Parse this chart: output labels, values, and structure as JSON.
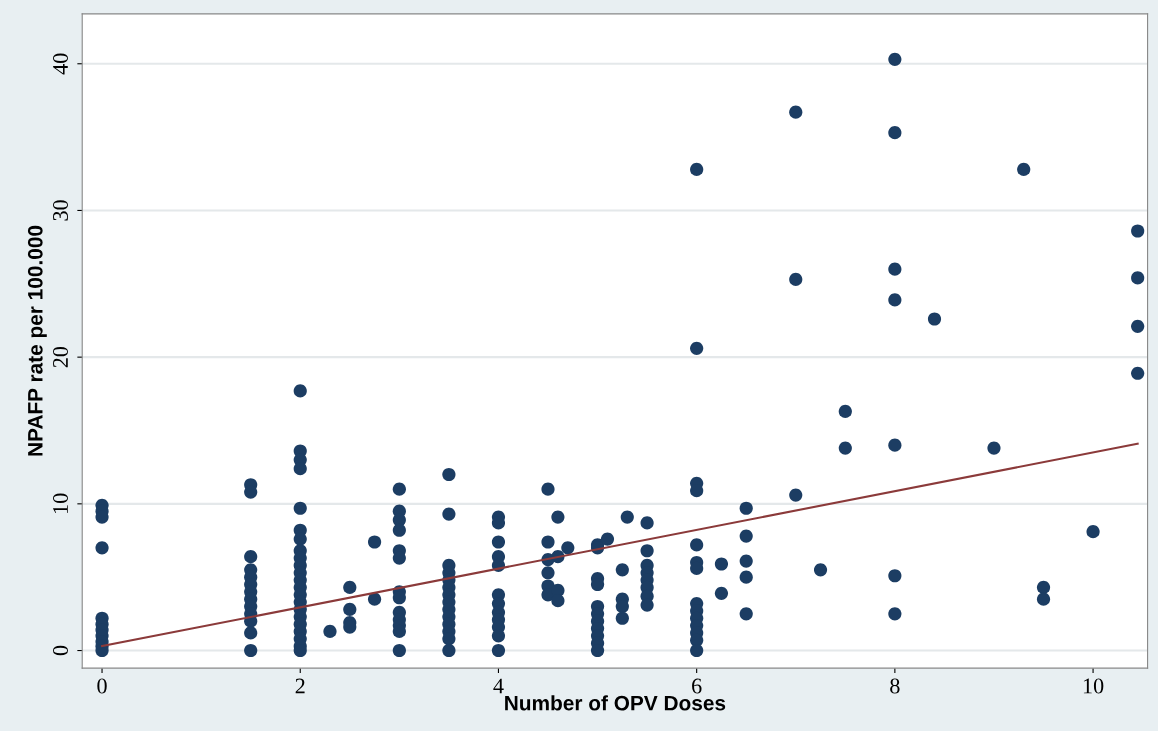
{
  "chart_data": {
    "type": "scatter",
    "xlabel": "Number of OPV Doses",
    "ylabel": "NPAFP rate per 100.000",
    "xlim": [
      -0.2,
      10.55
    ],
    "ylim": [
      -1.2,
      43.4
    ],
    "xticks": [
      0,
      2,
      4,
      6,
      8,
      10
    ],
    "yticks": [
      0,
      10,
      20,
      30,
      40
    ],
    "grid": "y",
    "marker": "circle",
    "legend": false,
    "series": [
      {
        "color": "#1c3d63",
        "x": [
          0,
          0,
          0,
          0,
          0,
          0,
          0,
          0,
          0,
          0,
          0,
          1.5,
          1.5,
          1.5,
          1.5,
          1.5,
          1.5,
          1.5,
          1.5,
          1.5,
          1.5,
          1.5,
          1.5,
          1.5,
          2,
          2,
          2,
          2,
          2,
          2,
          2,
          2,
          2,
          2,
          2,
          2,
          2,
          2,
          2,
          2,
          2,
          2,
          2,
          2,
          2,
          2,
          2.3,
          2.5,
          2.5,
          2.5,
          2.5,
          2.75,
          2.75,
          3,
          3,
          3,
          3,
          3,
          3,
          3,
          3,
          3,
          3,
          3,
          3,
          3,
          3.5,
          3.5,
          3.5,
          3.5,
          3.5,
          3.5,
          3.5,
          3.5,
          3.5,
          3.5,
          3.5,
          3.5,
          3.5,
          3.5,
          4,
          4,
          4,
          4,
          4,
          4,
          4,
          4,
          4,
          4,
          4,
          4,
          4.5,
          4.5,
          4.5,
          4.5,
          4.5,
          4.5,
          4.6,
          4.6,
          4.6,
          4.6,
          4.7,
          5,
          5,
          5,
          5,
          5,
          5,
          5,
          5,
          5,
          5,
          5,
          5.1,
          5.25,
          5.25,
          5.25,
          5.25,
          5.3,
          5.5,
          5.5,
          5.5,
          5.5,
          5.5,
          5.5,
          5.5,
          5.5,
          6,
          6,
          6,
          6,
          6,
          6,
          6,
          6,
          6,
          6,
          6,
          6,
          6,
          6,
          6.25,
          6.25,
          6.5,
          6.5,
          6.5,
          6.5,
          6.5,
          7,
          7,
          7,
          7.25,
          7.5,
          7.5,
          8,
          8,
          8,
          8,
          8,
          8,
          8,
          8.4,
          9,
          9.3,
          9.5,
          9.5,
          10,
          10.45,
          10.45,
          10.45,
          10.45
        ],
        "values": [
          9.9,
          9.5,
          9.1,
          7.0,
          2.2,
          1.8,
          1.4,
          1.0,
          0.6,
          0.3,
          0,
          11.3,
          10.8,
          6.4,
          5.5,
          5.0,
          4.5,
          4.0,
          3.5,
          3.0,
          2.5,
          2.0,
          1.2,
          0,
          17.7,
          13.6,
          13.0,
          12.4,
          9.7,
          8.2,
          7.6,
          6.8,
          6.3,
          5.8,
          5.3,
          4.8,
          4.3,
          3.8,
          3.3,
          2.8,
          2.3,
          1.8,
          1.3,
          0.8,
          0.3,
          0,
          1.3,
          4.3,
          2.8,
          1.9,
          1.6,
          7.4,
          3.5,
          11.0,
          9.5,
          8.9,
          8.2,
          6.8,
          6.3,
          4.0,
          3.6,
          2.6,
          2.1,
          1.7,
          1.3,
          0,
          12.0,
          9.3,
          5.8,
          5.3,
          4.8,
          4.3,
          3.8,
          3.3,
          2.8,
          2.3,
          1.8,
          1.3,
          0.8,
          0,
          9.1,
          8.7,
          7.4,
          6.4,
          5.8,
          3.8,
          3.2,
          2.6,
          2.1,
          1.6,
          1.0,
          0,
          11.0,
          7.4,
          6.2,
          5.3,
          4.4,
          3.8,
          9.1,
          6.4,
          4.1,
          3.4,
          7.0,
          7.2,
          7.0,
          4.9,
          4.5,
          3.0,
          2.5,
          2.0,
          1.5,
          1.0,
          0.5,
          0,
          7.6,
          5.5,
          3.5,
          3.0,
          2.2,
          9.1,
          8.7,
          6.8,
          5.8,
          5.3,
          4.8,
          4.3,
          3.7,
          3.1,
          32.8,
          20.6,
          11.4,
          10.9,
          7.2,
          6.0,
          5.6,
          3.2,
          2.7,
          2.2,
          1.7,
          1.2,
          0.7,
          0,
          5.9,
          3.9,
          9.7,
          7.8,
          6.1,
          5.0,
          2.5,
          36.7,
          25.3,
          10.6,
          5.5,
          16.3,
          13.8,
          40.3,
          35.3,
          26.0,
          23.9,
          14.0,
          5.1,
          2.5,
          22.6,
          13.8,
          32.8,
          4.3,
          3.5,
          8.1,
          28.6,
          25.4,
          22.1,
          18.9
        ]
      },
      {
        "type": "line",
        "color": "#8b3a3a",
        "x": [
          0,
          10.45
        ],
        "values": [
          0.3,
          14.1
        ],
        "marker": "none",
        "line_style": "solid"
      }
    ]
  }
}
